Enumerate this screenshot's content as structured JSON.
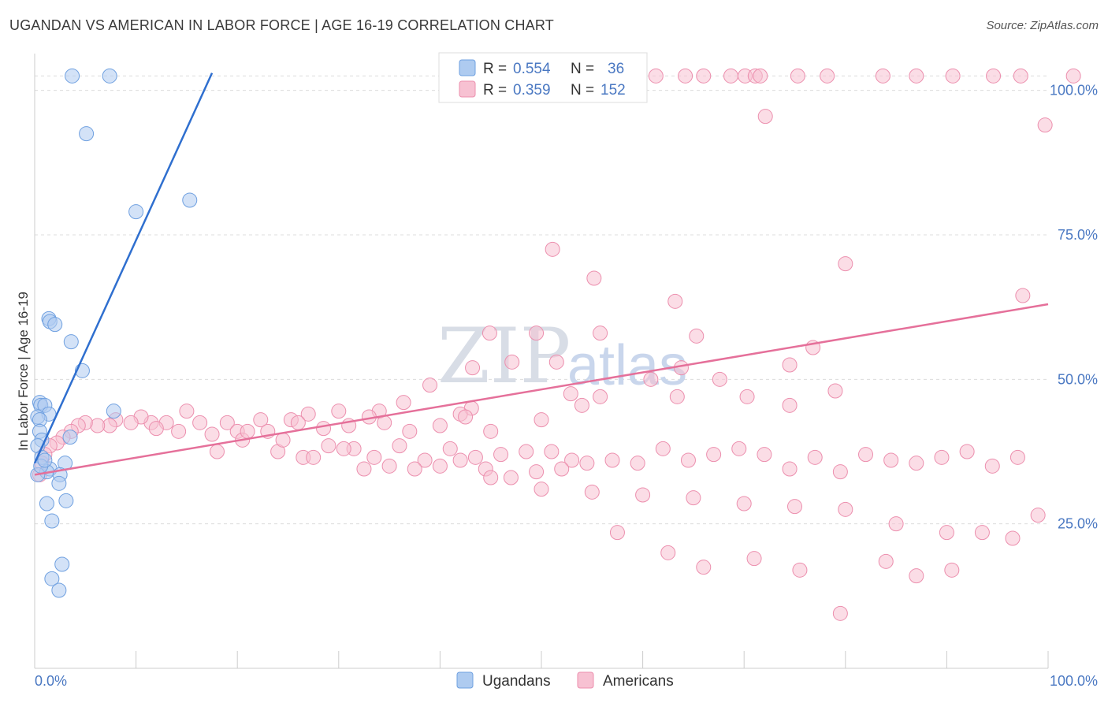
{
  "title": "UGANDAN VS AMERICAN IN LABOR FORCE | AGE 16-19 CORRELATION CHART",
  "source": "Source: ZipAtlas.com",
  "watermark": {
    "zip": "ZIP",
    "atlas": "atlas"
  },
  "legend": {
    "rows": [
      {
        "r_label": "R =",
        "r_value": "0.554",
        "n_label": "N =",
        "n_value": "36",
        "color": "#aecbf0",
        "stroke": "#6fa0e0"
      },
      {
        "r_label": "R =",
        "r_value": "0.359",
        "n_label": "N =",
        "n_value": "152",
        "color": "#f7c1d2",
        "stroke": "#ec8fae"
      }
    ]
  },
  "bottom_legend": [
    {
      "label": "Ugandans",
      "color": "#aecbf0",
      "stroke": "#6fa0e0"
    },
    {
      "label": "Americans",
      "color": "#f7c1d2",
      "stroke": "#ec8fae"
    }
  ],
  "chart_data": {
    "type": "scatter",
    "title": "UGANDAN VS AMERICAN IN LABOR FORCE | AGE 16-19 CORRELATION CHART",
    "xlabel": "",
    "ylabel": "In Labor Force | Age 16-19",
    "xlim": [
      0,
      100
    ],
    "ylim": [
      0,
      105
    ],
    "x_tick_labels": [
      "0.0%",
      "100.0%"
    ],
    "y_tick_labels": [
      "25.0%",
      "50.0%",
      "75.0%",
      "100.0%"
    ],
    "y_ticks": [
      25,
      50,
      75,
      100
    ],
    "grid": true,
    "series": [
      {
        "name": "Ugandans",
        "color": "#aecbf0",
        "stroke": "#6fa0e0",
        "trend": {
          "x": [
            0.0,
            17.5
          ],
          "y": [
            35.5,
            103.0
          ],
          "color": "#2f6fcf"
        },
        "points": [
          [
            3.7,
            102.5
          ],
          [
            7.4,
            102.5
          ],
          [
            5.1,
            92.5
          ],
          [
            15.3,
            81.0
          ],
          [
            10.0,
            79.0
          ],
          [
            1.4,
            60.5
          ],
          [
            1.5,
            60.0
          ],
          [
            2.0,
            59.5
          ],
          [
            3.6,
            56.5
          ],
          [
            4.7,
            51.5
          ],
          [
            0.5,
            46.0
          ],
          [
            0.6,
            45.5
          ],
          [
            1.0,
            45.5
          ],
          [
            7.8,
            44.5
          ],
          [
            1.4,
            44.0
          ],
          [
            0.3,
            43.5
          ],
          [
            0.5,
            43.0
          ],
          [
            0.5,
            41.0
          ],
          [
            3.5,
            40.0
          ],
          [
            0.7,
            39.5
          ],
          [
            0.3,
            38.5
          ],
          [
            0.7,
            36.5
          ],
          [
            3.0,
            35.5
          ],
          [
            1.5,
            34.5
          ],
          [
            1.2,
            34.0
          ],
          [
            0.3,
            33.5
          ],
          [
            2.5,
            33.5
          ],
          [
            2.4,
            32.0
          ],
          [
            3.1,
            29.0
          ],
          [
            1.2,
            28.5
          ],
          [
            1.7,
            25.5
          ],
          [
            2.7,
            18.0
          ],
          [
            1.7,
            15.5
          ],
          [
            2.4,
            13.5
          ],
          [
            0.6,
            35.0
          ],
          [
            1.0,
            36.0
          ]
        ]
      },
      {
        "name": "Americans",
        "color": "#f7c1d2",
        "stroke": "#ec8fae",
        "trend": {
          "x": [
            0.0,
            100.0
          ],
          "y": [
            33.5,
            63.0
          ],
          "color": "#e5709a"
        },
        "points": [
          [
            61.3,
            102.5
          ],
          [
            64.2,
            102.5
          ],
          [
            66.0,
            102.5
          ],
          [
            68.7,
            102.5
          ],
          [
            70.1,
            102.5
          ],
          [
            71.1,
            102.5
          ],
          [
            71.6,
            102.5
          ],
          [
            75.3,
            102.5
          ],
          [
            78.2,
            102.5
          ],
          [
            83.7,
            102.5
          ],
          [
            87.0,
            102.5
          ],
          [
            90.6,
            102.5
          ],
          [
            94.6,
            102.5
          ],
          [
            97.3,
            102.5
          ],
          [
            102.5,
            102.5
          ],
          [
            72.1,
            95.5
          ],
          [
            99.7,
            94.0
          ],
          [
            51.1,
            72.5
          ],
          [
            55.2,
            67.5
          ],
          [
            80.0,
            70.0
          ],
          [
            63.2,
            63.5
          ],
          [
            97.5,
            64.5
          ],
          [
            55.8,
            58.0
          ],
          [
            44.9,
            58.0
          ],
          [
            49.5,
            58.0
          ],
          [
            65.3,
            57.5
          ],
          [
            76.8,
            55.5
          ],
          [
            74.5,
            52.5
          ],
          [
            47.1,
            53.0
          ],
          [
            51.5,
            53.0
          ],
          [
            43.2,
            52.0
          ],
          [
            63.8,
            52.0
          ],
          [
            60.8,
            50.0
          ],
          [
            67.6,
            50.0
          ],
          [
            39.0,
            49.0
          ],
          [
            52.9,
            47.5
          ],
          [
            55.8,
            47.0
          ],
          [
            63.4,
            47.0
          ],
          [
            70.3,
            47.0
          ],
          [
            54.0,
            45.5
          ],
          [
            74.5,
            45.5
          ],
          [
            79.0,
            48.0
          ],
          [
            43.1,
            45.0
          ],
          [
            42.0,
            44.0
          ],
          [
            36.4,
            46.0
          ],
          [
            34.0,
            44.5
          ],
          [
            33.0,
            43.5
          ],
          [
            30.0,
            44.5
          ],
          [
            27.0,
            44.0
          ],
          [
            25.3,
            43.0
          ],
          [
            22.3,
            43.0
          ],
          [
            19.0,
            42.5
          ],
          [
            16.3,
            42.5
          ],
          [
            15.0,
            44.5
          ],
          [
            13.0,
            42.5
          ],
          [
            11.5,
            42.5
          ],
          [
            10.5,
            43.5
          ],
          [
            9.5,
            42.5
          ],
          [
            8.0,
            43.0
          ],
          [
            7.4,
            42.0
          ],
          [
            6.2,
            42.0
          ],
          [
            5.0,
            42.5
          ],
          [
            4.3,
            42.0
          ],
          [
            3.6,
            41.0
          ],
          [
            2.8,
            40.0
          ],
          [
            2.2,
            39.0
          ],
          [
            1.5,
            38.5
          ],
          [
            1.0,
            37.0
          ],
          [
            0.7,
            35.5
          ],
          [
            0.5,
            33.5
          ],
          [
            12.0,
            41.5
          ],
          [
            14.2,
            41.0
          ],
          [
            17.5,
            40.5
          ],
          [
            20.0,
            41.0
          ],
          [
            23.0,
            41.0
          ],
          [
            26.0,
            42.5
          ],
          [
            28.5,
            41.5
          ],
          [
            31.0,
            42.0
          ],
          [
            34.5,
            42.5
          ],
          [
            37.0,
            41.0
          ],
          [
            40.0,
            42.0
          ],
          [
            42.5,
            43.5
          ],
          [
            45.0,
            41.0
          ],
          [
            50.0,
            43.0
          ],
          [
            18.0,
            37.5
          ],
          [
            20.5,
            39.5
          ],
          [
            24.0,
            37.5
          ],
          [
            26.5,
            36.5
          ],
          [
            29.0,
            38.5
          ],
          [
            31.5,
            38.0
          ],
          [
            33.5,
            36.5
          ],
          [
            36.0,
            38.5
          ],
          [
            38.5,
            36.0
          ],
          [
            41.0,
            38.0
          ],
          [
            43.5,
            36.5
          ],
          [
            46.0,
            37.0
          ],
          [
            48.5,
            37.5
          ],
          [
            51.0,
            37.5
          ],
          [
            53.0,
            36.0
          ],
          [
            21.0,
            41.0
          ],
          [
            24.5,
            39.5
          ],
          [
            27.5,
            36.5
          ],
          [
            30.5,
            38.0
          ],
          [
            32.5,
            34.5
          ],
          [
            35.0,
            35.0
          ],
          [
            37.5,
            34.5
          ],
          [
            40.0,
            35.0
          ],
          [
            42.0,
            36.0
          ],
          [
            44.5,
            34.5
          ],
          [
            47.0,
            33.0
          ],
          [
            49.5,
            34.0
          ],
          [
            52.0,
            34.5
          ],
          [
            54.5,
            35.5
          ],
          [
            57.0,
            36.0
          ],
          [
            59.5,
            35.5
          ],
          [
            62.0,
            38.0
          ],
          [
            64.5,
            36.0
          ],
          [
            67.0,
            37.0
          ],
          [
            69.5,
            38.0
          ],
          [
            72.0,
            37.0
          ],
          [
            74.5,
            34.5
          ],
          [
            77.0,
            36.5
          ],
          [
            79.5,
            34.0
          ],
          [
            82.0,
            37.0
          ],
          [
            84.5,
            36.0
          ],
          [
            87.0,
            35.5
          ],
          [
            89.5,
            36.5
          ],
          [
            92.0,
            37.5
          ],
          [
            94.5,
            35.0
          ],
          [
            97.0,
            36.5
          ],
          [
            45.0,
            33.0
          ],
          [
            50.0,
            31.0
          ],
          [
            55.0,
            30.5
          ],
          [
            60.0,
            30.0
          ],
          [
            65.0,
            29.5
          ],
          [
            70.0,
            28.5
          ],
          [
            75.0,
            28.0
          ],
          [
            80.0,
            27.5
          ],
          [
            85.0,
            25.0
          ],
          [
            90.0,
            23.5
          ],
          [
            57.5,
            23.5
          ],
          [
            62.5,
            20.0
          ],
          [
            66.0,
            17.5
          ],
          [
            71.0,
            19.0
          ],
          [
            75.5,
            17.0
          ],
          [
            79.5,
            9.5
          ],
          [
            84.0,
            18.5
          ],
          [
            87.0,
            16.0
          ],
          [
            90.5,
            17.0
          ],
          [
            93.5,
            23.5
          ],
          [
            96.5,
            22.5
          ],
          [
            99.0,
            26.5
          ]
        ]
      }
    ]
  }
}
